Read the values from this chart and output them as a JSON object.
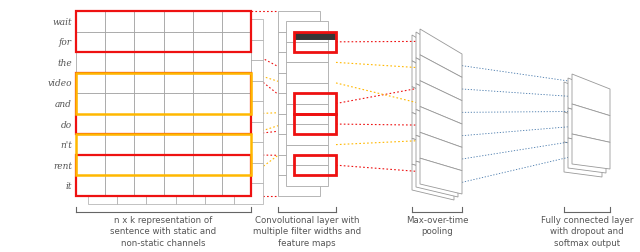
{
  "bg_color": "#ffffff",
  "text_color": "#666666",
  "sentence_words": [
    "wait",
    "for",
    "the",
    "video",
    "and",
    "do",
    "n't",
    "rent",
    "it"
  ],
  "label_texts": [
    "n x k representation of\nsentence with static and\nnon-static channels",
    "Convolutional layer with\nmultiple filter widths and\nfeature maps",
    "Max-over-time\npooling",
    "Fully connected layer\nwith dropout and\nsoftmax output"
  ],
  "red_color": "#ee1111",
  "yellow_color": "#FFB800",
  "blue_color": "#4477aa",
  "gray_color": "#999999",
  "dark_color": "#333333"
}
